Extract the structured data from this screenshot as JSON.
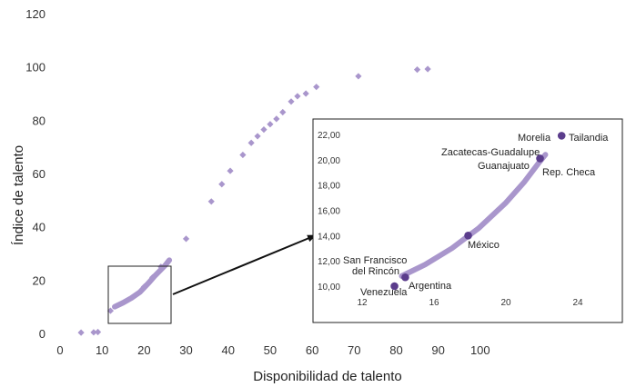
{
  "chart_data": [
    {
      "type": "scatter",
      "title": "",
      "xlabel": "Disponibilidad de talento",
      "ylabel": "Índice de talento",
      "xlim": [
        0,
        110
      ],
      "ylim": [
        0,
        120
      ],
      "x_ticks": [
        0,
        10,
        20,
        30,
        40,
        50,
        60,
        70,
        80,
        90,
        100
      ],
      "y_ticks": [
        0,
        20,
        40,
        60,
        80,
        100,
        120
      ],
      "color": "#a996cc",
      "grid": false,
      "dots": [
        {
          "x": 5,
          "y": 0.3
        },
        {
          "x": 8,
          "y": 0.4
        },
        {
          "x": 9,
          "y": 0.5
        },
        {
          "x": 12,
          "y": 8.5
        },
        {
          "x": 20,
          "y": 17.5
        },
        {
          "x": 22,
          "y": 21
        },
        {
          "x": 24,
          "y": 25
        },
        {
          "x": 30,
          "y": 35.5
        },
        {
          "x": 36,
          "y": 49.5
        },
        {
          "x": 38.5,
          "y": 56
        },
        {
          "x": 40.5,
          "y": 61
        },
        {
          "x": 43.5,
          "y": 67
        },
        {
          "x": 45.5,
          "y": 71.5
        },
        {
          "x": 47,
          "y": 74
        },
        {
          "x": 48.5,
          "y": 76.5
        },
        {
          "x": 50,
          "y": 78.5
        },
        {
          "x": 51.5,
          "y": 80.5
        },
        {
          "x": 53,
          "y": 83
        },
        {
          "x": 55,
          "y": 87
        },
        {
          "x": 56.5,
          "y": 89
        },
        {
          "x": 58.5,
          "y": 90
        },
        {
          "x": 61,
          "y": 92.5
        },
        {
          "x": 71,
          "y": 96.5
        },
        {
          "x": 85,
          "y": 99
        },
        {
          "x": 87.5,
          "y": 99.2
        }
      ],
      "curve": [
        [
          13,
          10
        ],
        [
          15,
          11.5
        ],
        [
          17,
          13.3
        ],
        [
          19,
          15.5
        ],
        [
          21,
          18.8
        ],
        [
          22.5,
          21.5
        ],
        [
          25,
          25.5
        ],
        [
          26,
          27.5
        ]
      ]
    },
    {
      "type": "scatter",
      "title": "",
      "xlim": [
        12,
        24
      ],
      "ylim": [
        10,
        22
      ],
      "x_ticks": [
        12,
        16,
        20,
        24
      ],
      "y_ticks": [
        "10,00",
        "12,00",
        "14,00",
        "16,00",
        "18,00",
        "20,00",
        "22,00"
      ],
      "curve": [
        [
          14.2,
          10.8
        ],
        [
          15.5,
          11.7
        ],
        [
          17,
          13
        ],
        [
          18.5,
          14.6
        ],
        [
          20,
          16.6
        ],
        [
          21,
          18.2
        ],
        [
          21.8,
          19.7
        ],
        [
          22.2,
          20.4
        ]
      ],
      "points": [
        {
          "name": "Venezuela",
          "x": 13.8,
          "y": 10
        },
        {
          "name": "San Francisco del Rincón",
          "x": 14.4,
          "y": 10.7
        },
        {
          "name": "Argentina",
          "x": 14.4,
          "y": 10.7
        },
        {
          "name": "México",
          "x": 17.9,
          "y": 14
        },
        {
          "name": "Guanajuato",
          "x": 21.9,
          "y": 20.1
        },
        {
          "name": "Rep. Checa",
          "x": 21.9,
          "y": 20.1
        },
        {
          "name": "Zacatecas-Guadalupe",
          "x": 21.9,
          "y": 20.1
        },
        {
          "name": "Morelia",
          "x": 23.1,
          "y": 21.9
        },
        {
          "name": "Tailandia",
          "x": 23.1,
          "y": 21.9
        }
      ],
      "point_color": "#5b3d8c",
      "labels": {
        "venezuela": "Venezuela",
        "sanfrancisco_line1": "San Francisco",
        "sanfrancisco_line2": "del Rincón",
        "argentina": "Argentina",
        "mexico": "México",
        "zacatecas": "Zacatecas-Guadalupe",
        "guanajuato": "Guanajuato",
        "repcheca": "Rep. Checa",
        "morelia": "Morelia",
        "tailandia": "Tailandia"
      }
    }
  ]
}
